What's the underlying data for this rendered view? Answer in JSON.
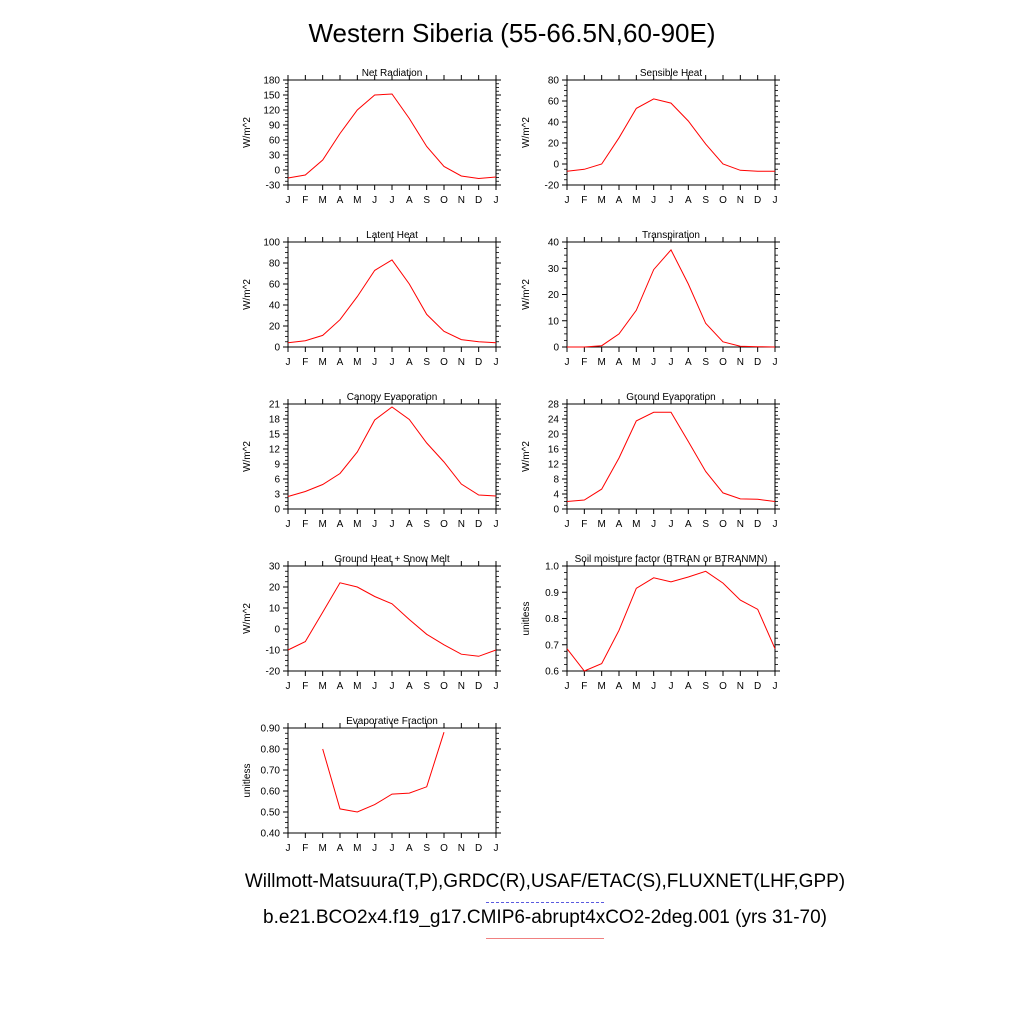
{
  "title": "Western Siberia (55-66.5N,60-90E)",
  "legend": {
    "observations_label": "Willmott-Matsuura(T,P),GRDC(R),USAF/ETAC(S),FLUXNET(LHF,GPP)",
    "model_label": "b.e21.BCO2x4.f19_g17.CMIP6-abrupt4xCO2-2deg.001 (yrs 31-70)",
    "observations_color": "#5a5ae0",
    "model_color": "#ff0000"
  },
  "months": [
    "J",
    "F",
    "M",
    "A",
    "M",
    "J",
    "J",
    "A",
    "S",
    "O",
    "N",
    "D",
    "J"
  ],
  "chart_data": [
    {
      "type": "line",
      "title": "Net Radiation",
      "ylabel": "W/m^2",
      "ylim": [
        -30,
        180
      ],
      "yticks": [
        "-30",
        "0",
        "30",
        "60",
        "90",
        "120",
        "150",
        "180"
      ],
      "series": [
        {
          "values": [
            -16,
            -10,
            20,
            73,
            120,
            150,
            152,
            103,
            47,
            7,
            -12,
            -17,
            -14
          ]
        }
      ]
    },
    {
      "type": "line",
      "title": "Sensible Heat",
      "ylabel": "W/m^2",
      "ylim": [
        -20,
        80
      ],
      "yticks": [
        "-20",
        "0",
        "20",
        "40",
        "60",
        "80"
      ],
      "series": [
        {
          "values": [
            -7,
            -5,
            0,
            25,
            53,
            62,
            58,
            41,
            19,
            0,
            -6,
            -7,
            -7
          ]
        }
      ]
    },
    {
      "type": "line",
      "title": "Latent Heat",
      "ylabel": "W/m^2",
      "ylim": [
        0,
        100
      ],
      "yticks": [
        "0",
        "20",
        "40",
        "60",
        "80",
        "100"
      ],
      "series": [
        {
          "values": [
            4,
            6,
            11,
            26,
            48,
            73,
            83,
            60,
            31,
            15,
            7,
            5,
            4
          ]
        }
      ]
    },
    {
      "type": "line",
      "title": "Transpiration",
      "ylabel": "W/m^2",
      "ylim": [
        0,
        40
      ],
      "yticks": [
        "0",
        "10",
        "20",
        "30",
        "40"
      ],
      "series": [
        {
          "values": [
            0,
            0,
            0.5,
            5,
            14,
            29.5,
            37,
            24,
            9,
            2,
            0.3,
            0.1,
            0
          ]
        }
      ]
    },
    {
      "type": "line",
      "title": "Canopy Evaporation",
      "ylabel": "W/m^2",
      "ylim": [
        0,
        21
      ],
      "yticks": [
        "0",
        "3",
        "6",
        "9",
        "12",
        "15",
        "18",
        "21"
      ],
      "series": [
        {
          "values": [
            2.5,
            3.5,
            4.9,
            7.1,
            11.4,
            17.8,
            20.4,
            17.9,
            13.2,
            9.4,
            5,
            2.8,
            2.6
          ]
        }
      ]
    },
    {
      "type": "line",
      "title": "Ground Evaporation",
      "ylabel": "W/m^2",
      "ylim": [
        0,
        28
      ],
      "yticks": [
        "0",
        "4",
        "8",
        "12",
        "16",
        "20",
        "24",
        "28"
      ],
      "series": [
        {
          "values": [
            2,
            2.4,
            5.3,
            13.6,
            23.5,
            25.8,
            25.8,
            18,
            10,
            4.3,
            2.7,
            2.6,
            2
          ]
        }
      ]
    },
    {
      "type": "line",
      "title": "Ground Heat + Snow Melt",
      "ylabel": "W/m^2",
      "ylim": [
        -20,
        30
      ],
      "yticks": [
        "-20",
        "-10",
        "0",
        "10",
        "20",
        "30"
      ],
      "series": [
        {
          "values": [
            -10,
            -6,
            8,
            22,
            20,
            15.5,
            12,
            4.5,
            -2.5,
            -7.5,
            -12,
            -13,
            -10
          ]
        }
      ]
    },
    {
      "type": "line",
      "title": "Soil moisture factor (BTRAN or BTRANMN)",
      "ylabel": "unitless",
      "ylim": [
        0.6,
        1.0
      ],
      "yticks": [
        "0.6",
        "0.7",
        "0.8",
        "0.9",
        "1.0"
      ],
      "series": [
        {
          "values": [
            0.685,
            0.6,
            0.628,
            0.755,
            0.915,
            0.955,
            0.94,
            0.958,
            0.98,
            0.935,
            0.87,
            0.835,
            0.685
          ]
        }
      ]
    },
    {
      "type": "line",
      "title": "Evaporative Fraction",
      "ylabel": "unitless",
      "ylim": [
        0.4,
        0.9
      ],
      "yticks": [
        "0.40",
        "0.50",
        "0.60",
        "0.70",
        "0.80",
        "0.90"
      ],
      "series": [
        {
          "values": [
            null,
            null,
            0.8,
            0.515,
            0.5,
            0.535,
            0.585,
            0.59,
            0.62,
            0.88,
            null,
            null,
            null
          ]
        }
      ]
    }
  ]
}
